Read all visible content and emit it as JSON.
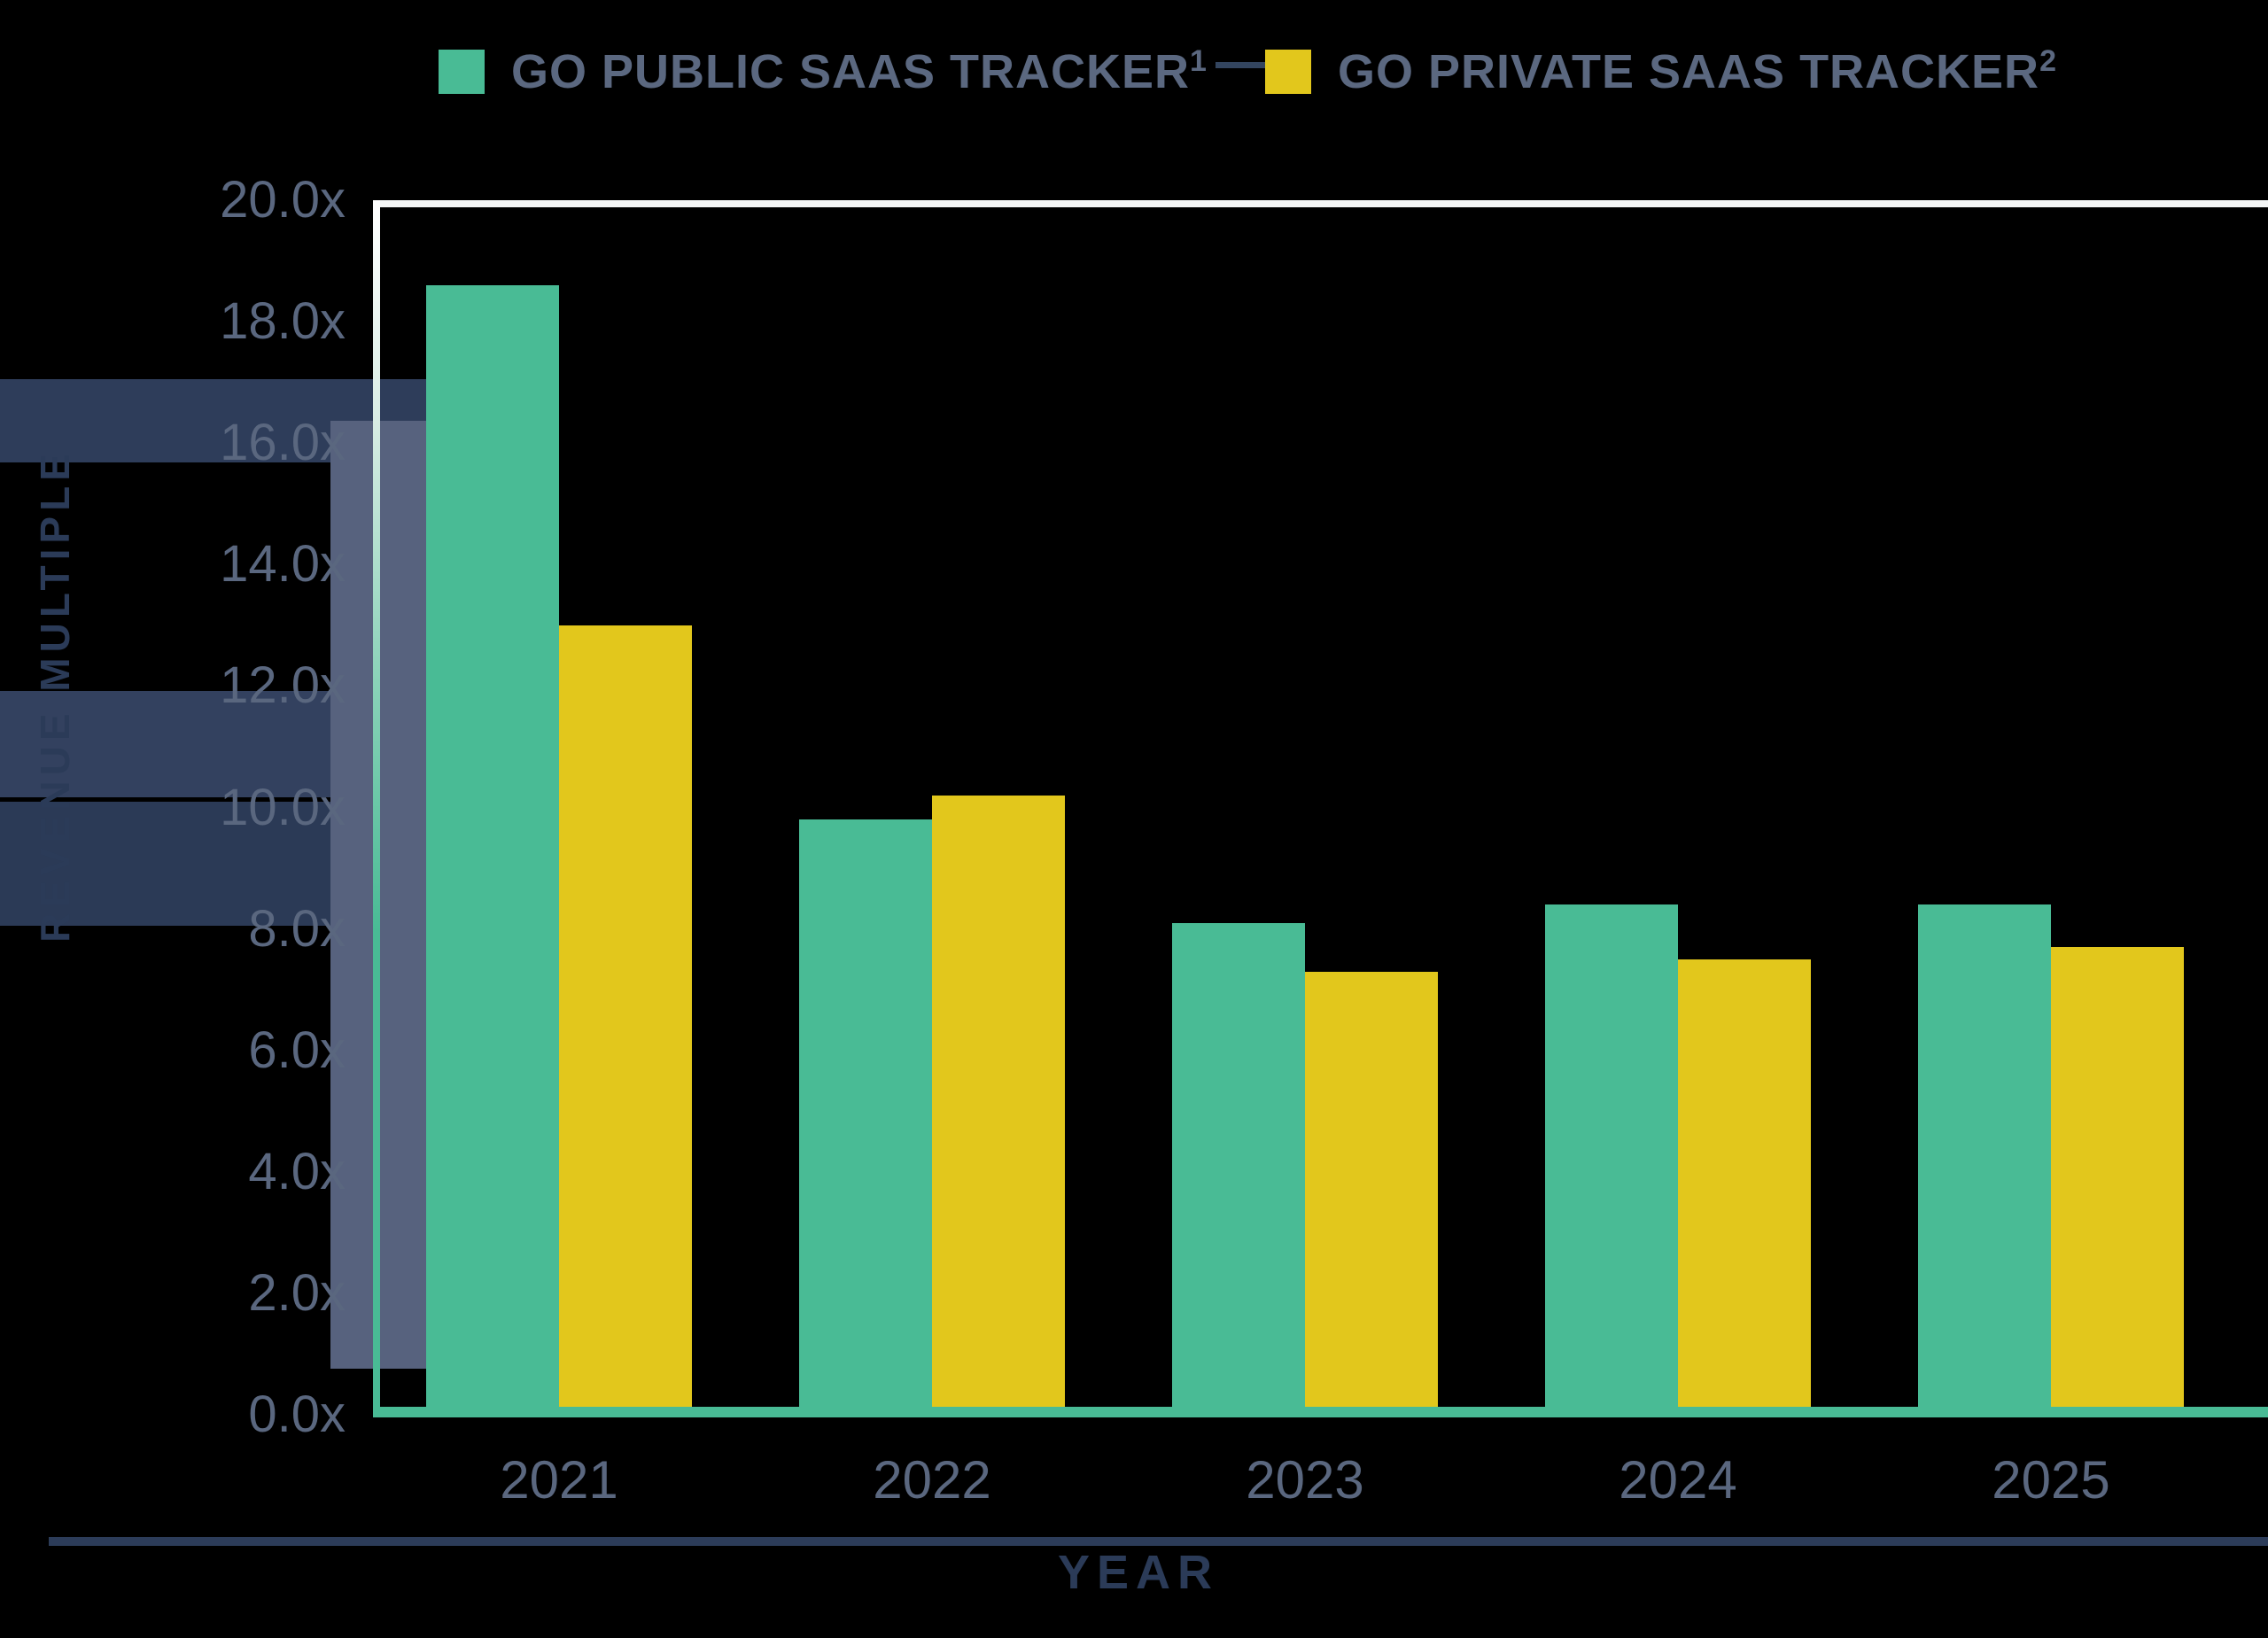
{
  "legend": {
    "items": [
      {
        "label": "GO PUBLIC SAAS TRACKER",
        "sup": "1",
        "color": "#49BB95"
      },
      {
        "label": "GO PRIVATE SAAS TRACKER",
        "sup": "2",
        "color": "#E2C71C"
      }
    ]
  },
  "axes": {
    "y_title": "REVENUE MULTIPLE",
    "x_title": "YEAR",
    "y_ticks": [
      "20.0x",
      "18.0x",
      "16.0x",
      "14.0x",
      "12.0x",
      "10.0x",
      "8.0x",
      "6.0x",
      "4.0x",
      "2.0x",
      "0.0x"
    ]
  },
  "chart_data": {
    "type": "bar",
    "title": "",
    "categories": [
      "2021",
      "2022",
      "2023",
      "2024",
      "2025"
    ],
    "series": [
      {
        "name": "GO PUBLIC SAAS TRACKER",
        "color": "#49BB95",
        "values": [
          18.6,
          9.8,
          8.1,
          8.4,
          8.4
        ]
      },
      {
        "name": "GO PRIVATE SAAS TRACKER",
        "color": "#E2C71C",
        "values": [
          13.0,
          10.2,
          7.3,
          7.5,
          7.7
        ]
      }
    ],
    "xlabel": "YEAR",
    "ylabel": "REVENUE MULTIPLE",
    "ylim": [
      0,
      20
    ],
    "y_tick_step": 2,
    "y_tick_suffix": "x",
    "grid": false,
    "legend_position": "top",
    "background": "#000000"
  },
  "colors": {
    "public_green": "#49BB95",
    "private_yellow": "#E2C71C",
    "tick_text": "#5A677F",
    "legend_text": "#5B6880",
    "axis_title_navy": "#2B3B58",
    "plot_border_white": "#F4F6F6",
    "background": "#000000"
  }
}
